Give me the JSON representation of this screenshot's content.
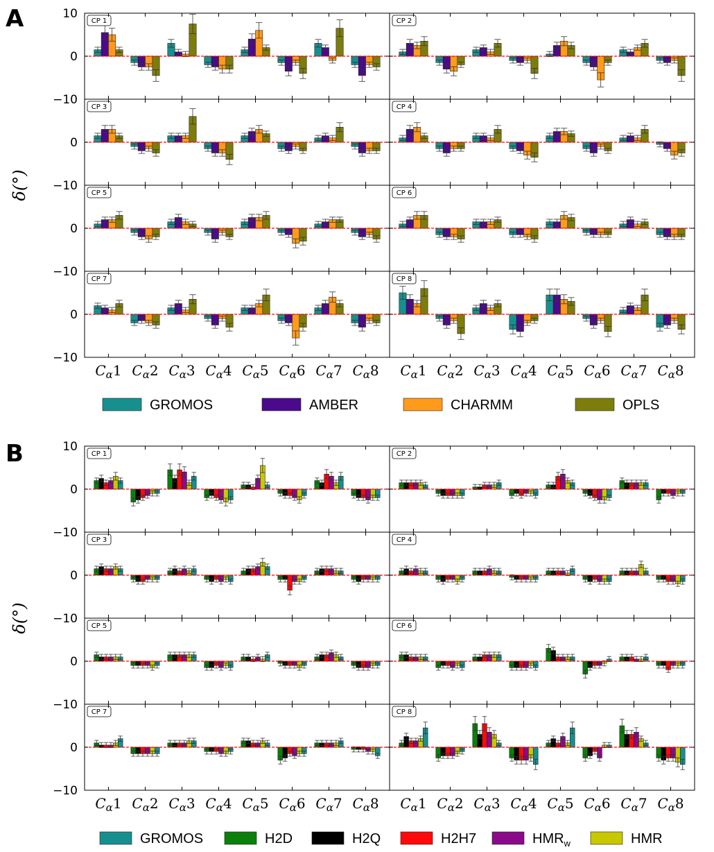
{
  "figure": {
    "panel_a_label": "A",
    "panel_b_label": "B",
    "ylabel": "δ(°)",
    "ylabel_delta": "δ",
    "ylabel_unit": "(°)",
    "category_prefix": "C",
    "category_subscript": "α",
    "reference_line_color": "#ff0000"
  },
  "chart_data": [
    {
      "type": "bar",
      "panel": "A",
      "categories": [
        "Cα1",
        "Cα2",
        "Cα3",
        "Cα4",
        "Cα5",
        "Cα6",
        "Cα7",
        "Cα8"
      ],
      "ylim": [
        -10,
        10
      ],
      "yticks": [
        10,
        0,
        -10
      ],
      "ytick_labels": [
        "10",
        "0",
        "−10"
      ],
      "series_meta": [
        {
          "name": "GROMOS",
          "color": "#16908f"
        },
        {
          "name": "AMBER",
          "color": "#4b0a8c"
        },
        {
          "name": "CHARMM",
          "color": "#ff9a1a"
        },
        {
          "name": "OPLS",
          "color": "#7d7d0c"
        }
      ],
      "subplots": [
        {
          "label": "CP 1",
          "values": [
            [
              1.5,
              5.5,
              5.0,
              1.5
            ],
            [
              -1.5,
              -2.5,
              -2.5,
              -4.5
            ],
            [
              3.0,
              1.0,
              0.5,
              7.5
            ],
            [
              -2.0,
              -2.5,
              -3.0,
              -3.0
            ],
            [
              1.5,
              4.0,
              6.0,
              2.0
            ],
            [
              -1.5,
              -3.5,
              -1.5,
              -4.0
            ],
            [
              3.0,
              2.0,
              -1.0,
              6.5
            ],
            [
              -2.0,
              -4.5,
              -2.0,
              -2.5
            ]
          ]
        },
        {
          "label": "CP 2",
          "values": [
            [
              1.0,
              3.0,
              2.5,
              3.5
            ],
            [
              -1.5,
              -3.0,
              -3.5,
              -2.0
            ],
            [
              1.5,
              2.0,
              1.0,
              3.0
            ],
            [
              -1.0,
              -1.5,
              -1.0,
              -4.0
            ],
            [
              0.5,
              2.5,
              3.5,
              2.5
            ],
            [
              -1.5,
              -2.5,
              -5.5,
              -1.5
            ],
            [
              1.5,
              1.0,
              2.0,
              3.0
            ],
            [
              -1.0,
              -1.5,
              -1.0,
              -4.5
            ]
          ]
        },
        {
          "label": "CP 3",
          "values": [
            [
              1.5,
              3.0,
              3.0,
              1.5
            ],
            [
              -1.0,
              -2.0,
              -1.5,
              -2.5
            ],
            [
              1.5,
              1.5,
              1.5,
              6.0
            ],
            [
              -1.5,
              -2.5,
              -2.5,
              -4.0
            ],
            [
              1.5,
              2.5,
              3.0,
              2.0
            ],
            [
              -1.5,
              -2.0,
              -1.0,
              -2.0
            ],
            [
              1.0,
              1.5,
              1.0,
              3.5
            ],
            [
              -1.0,
              -2.5,
              -2.0,
              -2.0
            ]
          ]
        },
        {
          "label": "CP 4",
          "values": [
            [
              1.0,
              3.0,
              3.5,
              1.5
            ],
            [
              -1.5,
              -2.5,
              -1.5,
              -1.5
            ],
            [
              1.5,
              1.5,
              1.0,
              3.0
            ],
            [
              -1.5,
              -2.0,
              -3.0,
              -3.5
            ],
            [
              1.5,
              2.5,
              2.5,
              2.0
            ],
            [
              -1.5,
              -2.5,
              -1.0,
              -2.0
            ],
            [
              1.0,
              1.5,
              1.0,
              3.0
            ],
            [
              -0.5,
              -1.5,
              -3.0,
              -2.5
            ]
          ]
        },
        {
          "label": "CP 5",
          "values": [
            [
              1.0,
              2.0,
              2.0,
              3.0
            ],
            [
              -1.0,
              -2.0,
              -2.5,
              -2.0
            ],
            [
              1.5,
              2.5,
              1.5,
              1.0
            ],
            [
              -1.0,
              -2.5,
              -1.0,
              -2.0
            ],
            [
              1.5,
              2.5,
              2.5,
              3.0
            ],
            [
              -1.0,
              -1.5,
              -3.5,
              -3.0
            ],
            [
              1.0,
              1.5,
              2.0,
              2.0
            ],
            [
              -1.0,
              -2.0,
              -1.5,
              -2.5
            ]
          ]
        },
        {
          "label": "CP 6",
          "values": [
            [
              1.0,
              2.0,
              3.0,
              3.0
            ],
            [
              -1.5,
              -2.0,
              -2.0,
              -2.5
            ],
            [
              1.5,
              1.5,
              1.5,
              2.0
            ],
            [
              -1.5,
              -1.5,
              -2.0,
              -2.5
            ],
            [
              1.5,
              1.5,
              3.0,
              2.5
            ],
            [
              -1.0,
              -1.5,
              -1.5,
              -1.5
            ],
            [
              1.0,
              2.0,
              1.0,
              1.5
            ],
            [
              -1.5,
              -2.0,
              -2.0,
              -2.0
            ]
          ]
        },
        {
          "label": "CP 7",
          "values": [
            [
              2.0,
              1.5,
              1.0,
              2.5
            ],
            [
              -2.0,
              -1.5,
              -2.0,
              -2.5
            ],
            [
              1.5,
              2.5,
              1.0,
              3.5
            ],
            [
              -1.0,
              -2.5,
              -1.0,
              -3.0
            ],
            [
              1.5,
              1.5,
              2.5,
              4.5
            ],
            [
              -1.5,
              -2.0,
              -5.5,
              -3.0
            ],
            [
              1.5,
              2.5,
              4.0,
              2.5
            ],
            [
              -2.0,
              -3.0,
              -1.5,
              -2.0
            ]
          ]
        },
        {
          "label": "CP 8",
          "values": [
            [
              5.0,
              3.5,
              2.5,
              6.0
            ],
            [
              -1.0,
              -2.5,
              -1.5,
              -4.5
            ],
            [
              1.5,
              2.5,
              1.5,
              2.5
            ],
            [
              -3.5,
              -4.0,
              -2.0,
              -1.5
            ],
            [
              4.5,
              4.5,
              3.5,
              3.0
            ],
            [
              -1.0,
              -2.5,
              -1.5,
              -4.0
            ],
            [
              1.0,
              2.0,
              1.5,
              4.5
            ],
            [
              -3.0,
              -2.5,
              -1.5,
              -3.5
            ]
          ]
        }
      ]
    },
    {
      "type": "bar",
      "panel": "B",
      "categories": [
        "Cα1",
        "Cα2",
        "Cα3",
        "Cα4",
        "Cα5",
        "Cα6",
        "Cα7",
        "Cα8"
      ],
      "ylim": [
        -10,
        10
      ],
      "yticks": [
        10,
        0,
        -10
      ],
      "ytick_labels": [
        "10",
        "0",
        "−10"
      ],
      "series_meta": [
        {
          "name": "H2D",
          "color": "#0a800a"
        },
        {
          "name": "H2Q",
          "color": "#000000"
        },
        {
          "name": "H2H7",
          "color": "#ff0a0a"
        },
        {
          "name": "HMR",
          "name_sub": "w",
          "color": "#8a0a8a"
        },
        {
          "name": "HMR",
          "color": "#c8c800"
        },
        {
          "name": "GROMOS",
          "color": "#16908f"
        }
      ],
      "subplots": [
        {
          "label": "CP 1",
          "values": [
            [
              2.0,
              2.5,
              1.5,
              2.0,
              3.0,
              2.0
            ],
            [
              -3.0,
              -2.5,
              -2.0,
              -1.5,
              -1.0,
              -1.0
            ],
            [
              4.5,
              2.5,
              4.5,
              4.0,
              1.5,
              3.0
            ],
            [
              -2.0,
              -1.5,
              -2.0,
              -2.5,
              -3.0,
              -2.5
            ],
            [
              1.0,
              1.0,
              0.5,
              2.5,
              5.5,
              1.0
            ],
            [
              -1.0,
              -1.5,
              -1.5,
              -2.0,
              -2.5,
              -1.5
            ],
            [
              2.0,
              1.5,
              3.5,
              3.0,
              1.5,
              3.0
            ],
            [
              -1.5,
              -2.0,
              -2.0,
              -2.5,
              -2.0,
              -2.0
            ]
          ]
        },
        {
          "label": "CP 2",
          "values": [
            [
              1.5,
              1.5,
              1.5,
              1.5,
              1.5,
              1.0
            ],
            [
              -1.0,
              -1.5,
              -1.5,
              -1.5,
              -1.5,
              -1.5
            ],
            [
              0.5,
              0.5,
              1.0,
              1.0,
              1.0,
              1.5
            ],
            [
              -1.5,
              -1.0,
              -1.5,
              -1.0,
              -1.0,
              -1.5
            ],
            [
              1.0,
              1.0,
              3.0,
              3.5,
              2.0,
              1.5
            ],
            [
              -1.0,
              -1.5,
              -2.0,
              -2.5,
              -2.5,
              -2.0
            ],
            [
              2.0,
              1.5,
              1.5,
              1.5,
              1.5,
              1.5
            ],
            [
              -2.5,
              -1.0,
              -1.0,
              -1.5,
              -1.0,
              -1.0
            ]
          ]
        },
        {
          "label": "CP 3",
          "values": [
            [
              1.5,
              2.0,
              1.5,
              1.5,
              2.0,
              1.5
            ],
            [
              -1.0,
              -1.5,
              -1.5,
              -1.0,
              -1.0,
              -1.0
            ],
            [
              1.0,
              1.5,
              1.0,
              1.5,
              1.0,
              1.5
            ],
            [
              -1.0,
              -1.5,
              -1.0,
              -1.5,
              -1.0,
              -1.5
            ],
            [
              1.0,
              1.5,
              1.5,
              2.0,
              3.0,
              2.0
            ],
            [
              -1.0,
              -1.0,
              -3.5,
              -1.5,
              -1.5,
              -1.0
            ],
            [
              1.0,
              1.5,
              1.5,
              1.5,
              1.0,
              1.0
            ],
            [
              -1.0,
              -1.5,
              -1.0,
              -1.0,
              -1.0,
              -1.0
            ]
          ]
        },
        {
          "label": "CP 4",
          "values": [
            [
              1.0,
              1.5,
              1.0,
              1.5,
              1.0,
              1.0
            ],
            [
              -1.0,
              -1.5,
              -1.0,
              -1.0,
              -1.5,
              -1.0
            ],
            [
              1.0,
              1.0,
              1.0,
              1.5,
              1.0,
              1.0
            ],
            [
              -0.5,
              -1.0,
              -1.0,
              -1.0,
              -1.0,
              -1.0
            ],
            [
              1.0,
              1.0,
              1.0,
              1.0,
              0.5,
              1.5
            ],
            [
              -1.0,
              -1.5,
              -1.0,
              -1.5,
              -1.5,
              -1.5
            ],
            [
              1.0,
              1.0,
              1.0,
              1.0,
              2.5,
              1.0
            ],
            [
              -1.0,
              -1.0,
              -1.5,
              -1.5,
              -2.0,
              -1.5
            ]
          ]
        },
        {
          "label": "CP 5",
          "values": [
            [
              1.5,
              1.0,
              1.0,
              1.0,
              1.0,
              1.0
            ],
            [
              -1.0,
              -1.0,
              -1.0,
              -1.0,
              -1.5,
              -1.0
            ],
            [
              1.5,
              1.5,
              1.5,
              1.5,
              1.5,
              1.5
            ],
            [
              -1.5,
              -1.5,
              -1.0,
              -1.5,
              -1.0,
              -1.5
            ],
            [
              1.0,
              1.0,
              0.5,
              1.0,
              0.5,
              1.5
            ],
            [
              -0.5,
              -1.0,
              -1.0,
              -1.0,
              -1.5,
              -1.0
            ],
            [
              1.0,
              1.5,
              1.5,
              2.0,
              1.5,
              1.0
            ],
            [
              -1.0,
              -1.5,
              -1.5,
              -1.5,
              -1.0,
              -1.0
            ]
          ]
        },
        {
          "label": "CP 6",
          "values": [
            [
              1.5,
              1.5,
              1.0,
              1.0,
              1.0,
              1.0
            ],
            [
              -1.5,
              -1.0,
              -1.0,
              -1.5,
              -1.0,
              -1.5
            ],
            [
              1.0,
              1.0,
              1.5,
              1.5,
              1.5,
              1.5
            ],
            [
              -1.5,
              -1.5,
              -1.5,
              -1.5,
              -1.0,
              -1.5
            ],
            [
              3.0,
              2.5,
              1.0,
              1.0,
              1.0,
              1.0
            ],
            [
              -3.0,
              -1.5,
              -1.0,
              -1.0,
              -0.5,
              0.5
            ],
            [
              1.0,
              1.0,
              1.0,
              0.5,
              0.5,
              1.0
            ],
            [
              -1.0,
              -1.0,
              -2.0,
              -1.0,
              -1.0,
              -1.0
            ]
          ]
        },
        {
          "label": "CP 7",
          "values": [
            [
              1.0,
              0.5,
              0.5,
              0.5,
              1.0,
              2.0
            ],
            [
              -1.5,
              -1.5,
              -1.5,
              -1.5,
              -1.5,
              -1.5
            ],
            [
              1.0,
              1.0,
              1.0,
              1.0,
              1.5,
              1.5
            ],
            [
              -1.0,
              -1.0,
              -1.0,
              -1.5,
              -1.5,
              -1.0
            ],
            [
              1.5,
              1.5,
              1.0,
              1.0,
              1.5,
              1.0
            ],
            [
              -3.0,
              -2.5,
              -1.5,
              -2.0,
              -1.5,
              -1.5
            ],
            [
              1.0,
              1.0,
              1.0,
              1.0,
              1.0,
              1.5
            ],
            [
              -0.5,
              -0.5,
              -0.5,
              -1.0,
              -1.0,
              -2.0
            ]
          ]
        },
        {
          "label": "CP 8",
          "values": [
            [
              1.0,
              2.5,
              1.5,
              1.5,
              2.0,
              4.5
            ],
            [
              -2.5,
              -2.0,
              -2.0,
              -2.0,
              -1.5,
              -1.0
            ],
            [
              5.5,
              3.0,
              5.5,
              3.5,
              3.0,
              1.0
            ],
            [
              -2.5,
              -3.0,
              -3.0,
              -3.0,
              -2.5,
              -4.0
            ],
            [
              1.0,
              2.0,
              1.0,
              2.5,
              1.0,
              4.5
            ],
            [
              -2.5,
              -2.0,
              -1.0,
              -2.5,
              0.5,
              0.5
            ],
            [
              5.0,
              3.0,
              3.0,
              3.5,
              2.0,
              1.0
            ],
            [
              -2.5,
              -3.0,
              -2.5,
              -2.5,
              -3.5,
              -4.0
            ]
          ]
        }
      ]
    }
  ],
  "legend_a": [
    {
      "label": "GROMOS",
      "color": "#16908f"
    },
    {
      "label": "AMBER",
      "color": "#4b0a8c"
    },
    {
      "label": "CHARMM",
      "color": "#ff9a1a"
    },
    {
      "label": "OPLS",
      "color": "#7d7d0c"
    }
  ],
  "legend_b": [
    {
      "label": "GROMOS",
      "color": "#16908f"
    },
    {
      "label": "H2D",
      "color": "#0a800a"
    },
    {
      "label": "H2Q",
      "color": "#000000"
    },
    {
      "label": "H2H7",
      "color": "#ff0a0a"
    },
    {
      "label": "HMR",
      "sub": "w",
      "color": "#8a0a8a"
    },
    {
      "label": "HMR",
      "color": "#c8c800"
    }
  ]
}
